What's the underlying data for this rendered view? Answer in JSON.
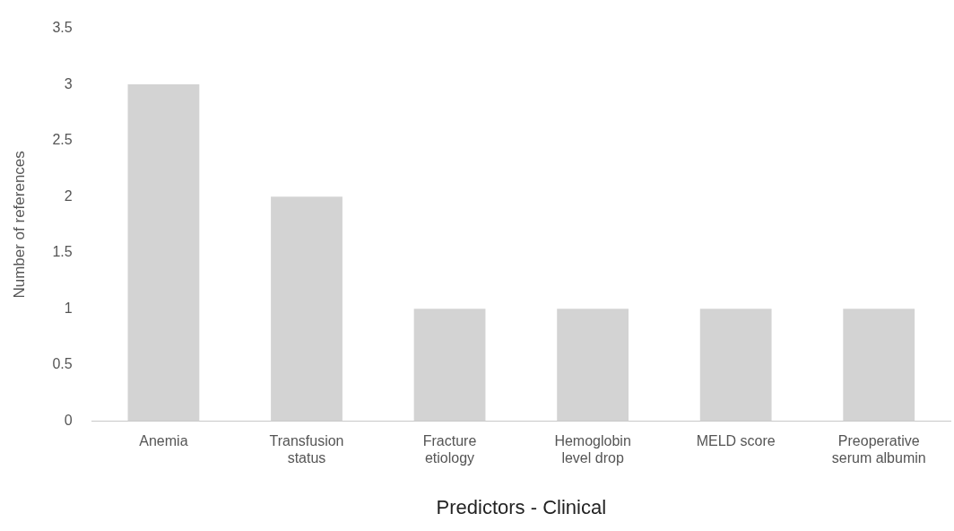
{
  "chart_data": {
    "type": "bar",
    "xlabel": "Predictors - Clinical",
    "ylabel": "Number of references",
    "categories": [
      "Anemia",
      "Transfusion status",
      "Fracture etiology",
      "Hemoglobin level drop",
      "MELD score",
      "Preoperative serum albumin"
    ],
    "values": [
      3,
      2,
      1,
      1,
      1,
      1
    ],
    "color": "#d3d3d3",
    "ylim": [
      0,
      3.5
    ],
    "yticks": [
      0,
      0.5,
      1,
      1.5,
      2,
      2.5,
      3,
      3.5
    ],
    "grid": false,
    "legend": false
  }
}
